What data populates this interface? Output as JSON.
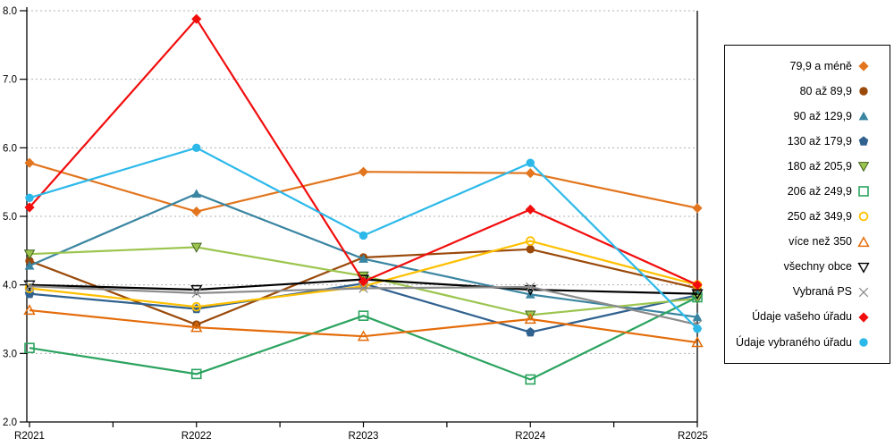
{
  "chart_data": {
    "type": "line",
    "title": "",
    "xlabel": "",
    "ylabel": "",
    "grid": "horizontal-dotted",
    "legend_position": "right",
    "categories": [
      "R2021",
      "R2022",
      "R2023",
      "R2024",
      "R2025"
    ],
    "y_axis": {
      "min": 2.0,
      "max": 8.0,
      "tick_values": [
        8,
        7,
        6,
        5,
        4,
        3,
        2
      ],
      "tick_labels": [
        "8.0",
        "7.0",
        "6.0",
        "5.0",
        "4.0",
        "3.0",
        "2.0"
      ]
    },
    "series": [
      {
        "name": "79,9 a méně",
        "marker": "diamond",
        "color": "#E2751D",
        "values": [
          5.78,
          5.07,
          5.65,
          5.63,
          5.12
        ]
      },
      {
        "name": "80 až 89,9",
        "marker": "circle",
        "color": "#9A4A0B",
        "values": [
          4.35,
          3.42,
          4.4,
          4.52,
          3.95
        ]
      },
      {
        "name": "90 až 129,9",
        "marker": "triangle-up",
        "color": "#3A85A1",
        "values": [
          4.28,
          5.33,
          4.38,
          3.86,
          3.53
        ]
      },
      {
        "name": "130 až 179,9",
        "marker": "pentagon",
        "color": "#30618F",
        "values": [
          3.87,
          3.65,
          4.02,
          3.31,
          3.85
        ]
      },
      {
        "name": "180 až 205,9",
        "marker": "triangle-down",
        "color": "#9CC54E",
        "marker_stroke": "#42611F",
        "values": [
          4.45,
          4.55,
          4.13,
          3.56,
          3.8
        ]
      },
      {
        "name": "206 až 249,9",
        "marker": "square-open",
        "color": "#2BA35F",
        "values": [
          3.08,
          2.7,
          3.55,
          2.62,
          3.82
        ]
      },
      {
        "name": "250 až 349,9",
        "marker": "circle-open",
        "color": "#FFC000",
        "values": [
          3.95,
          3.68,
          3.98,
          4.64,
          4.0
        ]
      },
      {
        "name": "více než 350",
        "marker": "triangle-up-open",
        "color": "#E46C0A",
        "values": [
          3.63,
          3.38,
          3.25,
          3.5,
          3.16
        ]
      },
      {
        "name": "všechny obce",
        "marker": "triangle-down-open",
        "color": "#000000",
        "values": [
          4.0,
          3.93,
          4.08,
          3.93,
          3.87
        ]
      },
      {
        "name": "Vybraná PS",
        "marker": "x",
        "color": "#8C8C8C",
        "values": [
          3.98,
          3.88,
          3.95,
          3.97,
          3.42
        ]
      },
      {
        "name": "Údaje vašeho úřadu",
        "marker": "diamond",
        "color": "#F20D0D",
        "values": [
          5.13,
          7.88,
          4.05,
          5.1,
          4.0
        ]
      },
      {
        "name": "Údaje vybraného úřadu",
        "marker": "circle",
        "color": "#2CB9EA",
        "values": [
          5.27,
          6.0,
          4.72,
          5.78,
          3.36
        ]
      }
    ],
    "colors": {
      "background": "#FFFFFF",
      "axis": "#000000",
      "gridline": "#B0B0B0",
      "legend_border": "#000000"
    }
  }
}
